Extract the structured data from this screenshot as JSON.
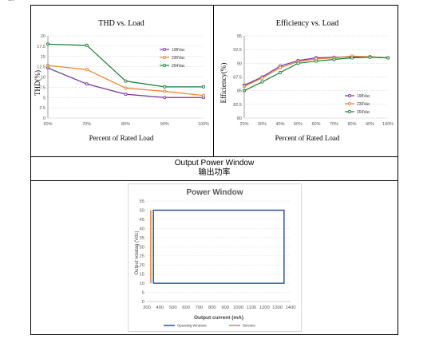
{
  "header_cutoff_text": "...",
  "section": {
    "title_en": "Output Power Window",
    "title_cn": "输出功率"
  },
  "colors": {
    "purple": "#7030a0",
    "orange": "#ed7d31",
    "green": "#1a7a3a",
    "blue": "#2f52a0",
    "axis": "#888888"
  },
  "chart_data": [
    {
      "type": "line",
      "title": "THD vs. Load",
      "xlabel": "Percent of Rated Load",
      "ylabel": "THD(%)",
      "x": [
        "60%",
        "70%",
        "80%",
        "90%",
        "100%"
      ],
      "yticks": [
        "0",
        "2.5",
        "5",
        "7.5",
        "10",
        "12.5",
        "15",
        "17.5",
        "20"
      ],
      "ylim": [
        0,
        20
      ],
      "legend_position": "right",
      "series": [
        {
          "name": "198Vac",
          "color": "#7030a0",
          "values": [
            12.2,
            8.3,
            5.8,
            5.0,
            5.0
          ]
        },
        {
          "name": "230Vac",
          "color": "#ed7d31",
          "values": [
            12.8,
            11.8,
            7.3,
            6.5,
            5.5
          ]
        },
        {
          "name": "264Vac",
          "color": "#1a7a3a",
          "values": [
            18.0,
            17.7,
            9.0,
            7.6,
            7.6
          ]
        }
      ]
    },
    {
      "type": "line",
      "title": "Efficiency vs. Load",
      "xlabel": "Percent of Rated Load",
      "ylabel": "Efficiency(%)",
      "x": [
        "20%",
        "30%",
        "40%",
        "50%",
        "60%",
        "70%",
        "80%",
        "90%",
        "100%"
      ],
      "yticks": [
        "80",
        "82.5",
        "85",
        "87.5",
        "90",
        "92.5",
        "95"
      ],
      "ylim": [
        80,
        95
      ],
      "legend_position": "bottom-right",
      "series": [
        {
          "name": "198Vac",
          "color": "#7030a0",
          "values": [
            86.0,
            87.5,
            89.5,
            90.5,
            91.0,
            91.1,
            91.2,
            91.2,
            91.0
          ]
        },
        {
          "name": "230Vac",
          "color": "#ed7d31",
          "values": [
            85.8,
            87.3,
            89.2,
            90.3,
            90.8,
            91.0,
            91.3,
            91.2,
            91.0
          ]
        },
        {
          "name": "264Vac",
          "color": "#1a7a3a",
          "values": [
            85.0,
            86.6,
            88.3,
            90.0,
            90.4,
            90.7,
            91.0,
            91.1,
            91.0
          ]
        }
      ]
    },
    {
      "type": "line",
      "title": "Power Window",
      "xlabel": "Output current (mA)",
      "ylabel": "Output volatag (Vdc)",
      "x": [
        300,
        400,
        500,
        600,
        700,
        800,
        900,
        1000,
        1100,
        1200,
        1300,
        1400
      ],
      "xlim": [
        300,
        1400
      ],
      "yticks": [
        "0",
        "5",
        "10",
        "15",
        "20",
        "25",
        "30",
        "35",
        "40",
        "45",
        "50",
        "55"
      ],
      "ylim": [
        0,
        55
      ],
      "legend_position": "bottom",
      "series": [
        {
          "name": "Operating Windows",
          "color": "#2f52a0",
          "points": [
            [
              350,
              10
            ],
            [
              350,
              50
            ],
            [
              1350,
              50
            ],
            [
              1350,
              10
            ],
            [
              350,
              10
            ]
          ]
        },
        {
          "name": "Dimmed",
          "color": "#ed7d31",
          "points": [
            [
              330,
              10
            ],
            [
              330,
              50
            ]
          ]
        }
      ]
    }
  ]
}
